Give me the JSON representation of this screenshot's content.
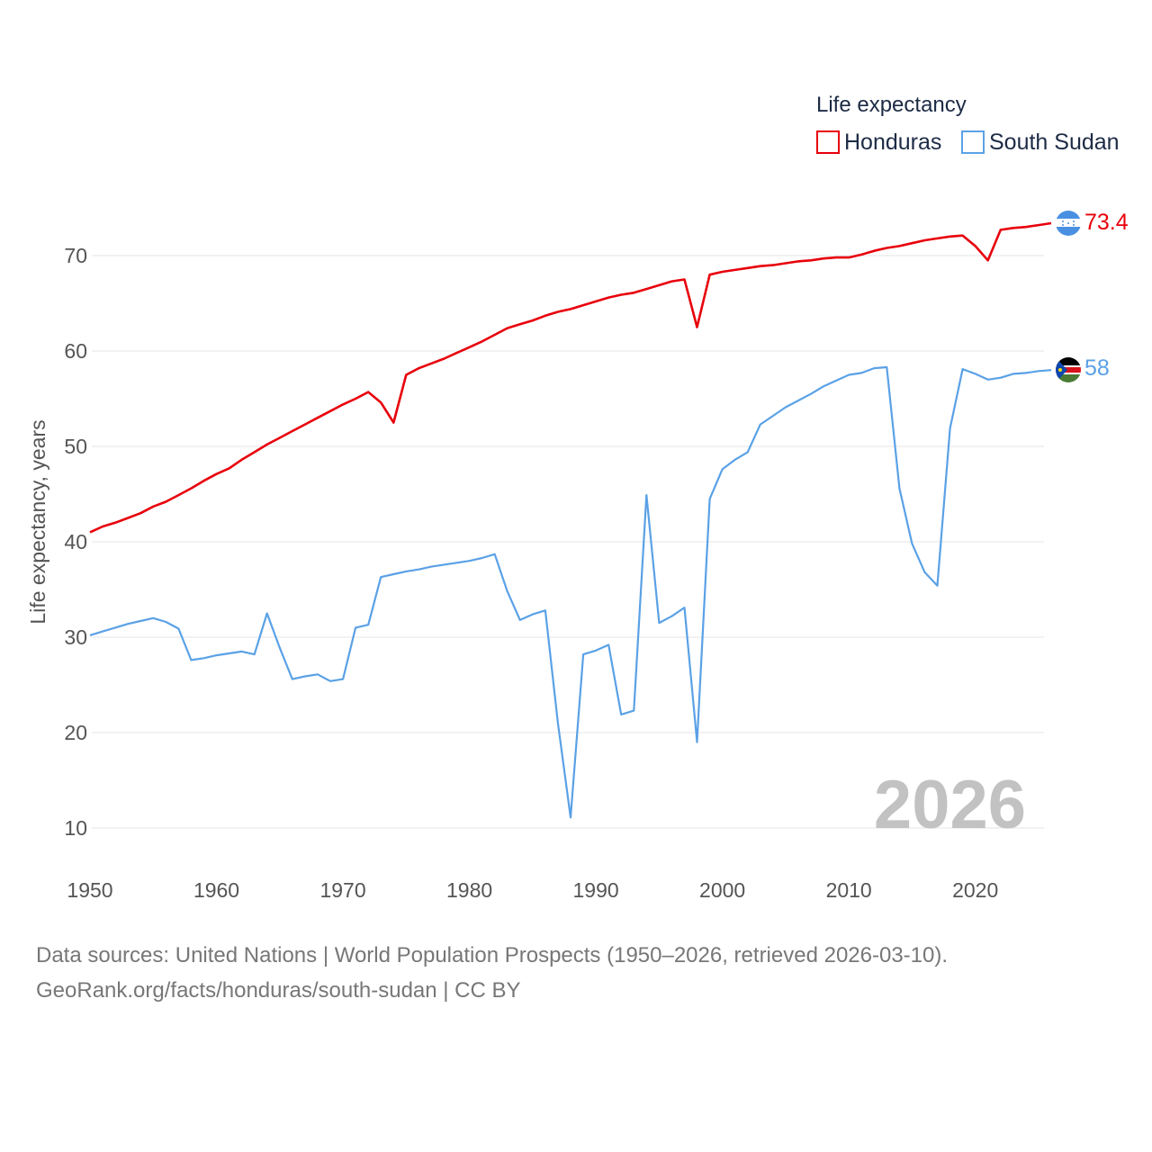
{
  "chart_data": {
    "type": "line",
    "legend_title": "Life expectancy",
    "ylabel": "Life expectancy, years",
    "xlabel": "",
    "xlim": [
      1950,
      2026
    ],
    "ylim": [
      5,
      75
    ],
    "x_ticks": [
      1950,
      1960,
      1970,
      1980,
      1990,
      2000,
      2010,
      2020
    ],
    "y_ticks": [
      10,
      20,
      30,
      40,
      50,
      60,
      70
    ],
    "year_label": "2026",
    "legend_position": "top-right",
    "series": [
      {
        "name": "Honduras",
        "color": "#e8000b",
        "end_label": "73.4",
        "x": [
          1950,
          1951,
          1952,
          1953,
          1954,
          1955,
          1956,
          1957,
          1958,
          1959,
          1960,
          1961,
          1962,
          1963,
          1964,
          1965,
          1966,
          1967,
          1968,
          1969,
          1970,
          1971,
          1972,
          1973,
          1974,
          1975,
          1976,
          1977,
          1978,
          1979,
          1980,
          1981,
          1982,
          1983,
          1984,
          1985,
          1986,
          1987,
          1988,
          1989,
          1990,
          1991,
          1992,
          1993,
          1994,
          1995,
          1996,
          1997,
          1998,
          1999,
          2000,
          2001,
          2002,
          2003,
          2004,
          2005,
          2006,
          2007,
          2008,
          2009,
          2010,
          2011,
          2012,
          2013,
          2014,
          2015,
          2016,
          2017,
          2018,
          2019,
          2020,
          2021,
          2022,
          2023,
          2024,
          2025,
          2026
        ],
        "values": [
          41.0,
          41.6,
          42.0,
          42.5,
          43.0,
          43.7,
          44.2,
          44.9,
          45.6,
          46.4,
          47.1,
          47.7,
          48.6,
          49.4,
          50.2,
          50.9,
          51.6,
          52.3,
          53.0,
          53.7,
          54.4,
          55.0,
          55.7,
          54.6,
          52.5,
          57.5,
          58.2,
          58.7,
          59.2,
          59.8,
          60.4,
          61.0,
          61.7,
          62.4,
          62.8,
          63.2,
          63.7,
          64.1,
          64.4,
          64.8,
          65.2,
          65.6,
          65.9,
          66.1,
          66.5,
          66.9,
          67.3,
          67.5,
          62.5,
          68.0,
          68.3,
          68.5,
          68.7,
          68.9,
          69.0,
          69.2,
          69.4,
          69.5,
          69.7,
          69.8,
          69.8,
          70.1,
          70.5,
          70.8,
          71.0,
          71.3,
          71.6,
          71.8,
          72.0,
          72.1,
          71.0,
          69.5,
          72.7,
          72.9,
          73.0,
          73.2,
          73.4
        ]
      },
      {
        "name": "South Sudan",
        "color": "#5aa1e6",
        "end_label": "58",
        "x": [
          1950,
          1951,
          1952,
          1953,
          1954,
          1955,
          1956,
          1957,
          1958,
          1959,
          1960,
          1961,
          1962,
          1963,
          1964,
          1965,
          1966,
          1967,
          1968,
          1969,
          1970,
          1971,
          1972,
          1973,
          1974,
          1975,
          1976,
          1977,
          1978,
          1979,
          1980,
          1981,
          1982,
          1983,
          1984,
          1985,
          1986,
          1987,
          1988,
          1989,
          1990,
          1991,
          1992,
          1993,
          1994,
          1995,
          1996,
          1997,
          1998,
          1999,
          2000,
          2001,
          2002,
          2003,
          2004,
          2005,
          2006,
          2007,
          2008,
          2009,
          2010,
          2011,
          2012,
          2013,
          2014,
          2015,
          2016,
          2017,
          2018,
          2019,
          2020,
          2021,
          2022,
          2023,
          2024,
          2025,
          2026
        ],
        "values": [
          30.2,
          30.6,
          31.0,
          31.4,
          31.7,
          32.0,
          31.6,
          30.9,
          27.6,
          27.8,
          28.1,
          28.3,
          28.5,
          28.2,
          32.5,
          28.9,
          25.6,
          25.9,
          26.1,
          25.4,
          25.6,
          31.0,
          31.3,
          36.3,
          36.6,
          36.9,
          37.1,
          37.4,
          37.6,
          37.8,
          38.0,
          38.3,
          38.7,
          34.8,
          31.8,
          32.4,
          32.8,
          21.0,
          11.1,
          28.2,
          28.6,
          29.2,
          21.9,
          22.3,
          44.9,
          31.5,
          32.2,
          33.1,
          19.0,
          44.5,
          47.6,
          48.6,
          49.4,
          52.3,
          53.2,
          54.1,
          54.8,
          55.5,
          56.3,
          56.9,
          57.5,
          57.7,
          58.2,
          58.3,
          45.6,
          39.8,
          36.8,
          35.4,
          51.9,
          58.1,
          57.6,
          57.0,
          57.2,
          57.6,
          57.7,
          57.9,
          58.0
        ]
      }
    ]
  },
  "footer": {
    "line1": "Data sources: United Nations | World Population Prospects (1950–2026, retrieved 2026-03-10).",
    "line2": "GeoRank.org/facts/honduras/south-sudan | CC BY"
  },
  "icons": [
    "honduras-flag-icon",
    "south-sudan-flag-icon"
  ]
}
